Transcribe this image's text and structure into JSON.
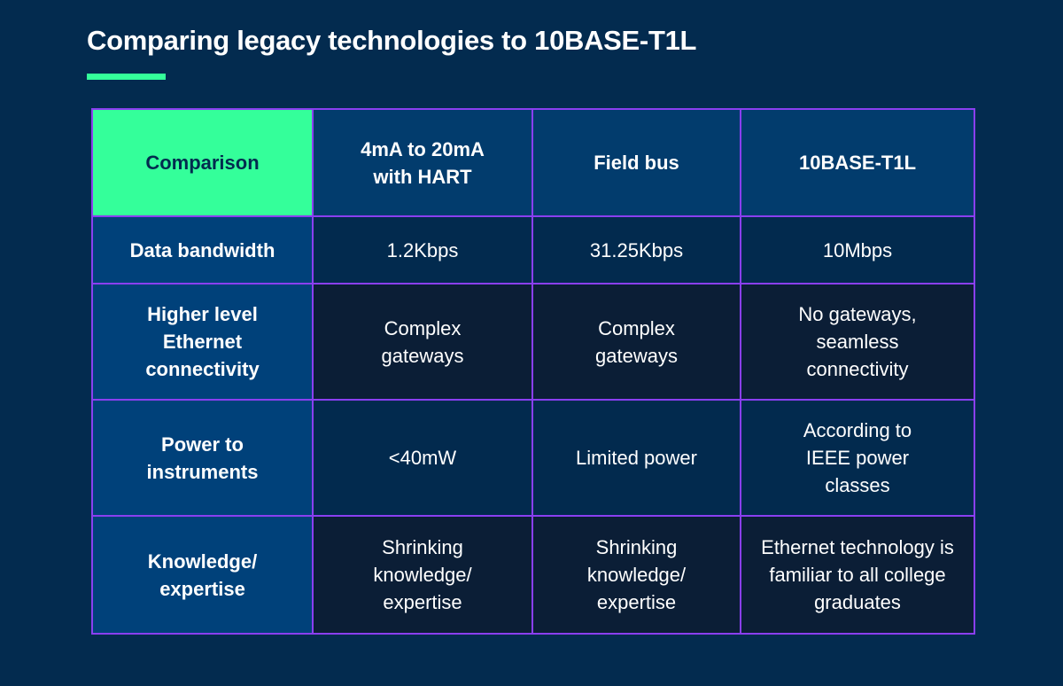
{
  "title": "Comparing legacy technologies to 10BASE-T1L",
  "colors": {
    "accent": "#34ff9a",
    "border": "#8a3ff0",
    "background": "#032b4f"
  },
  "table": {
    "corner": "Comparison",
    "columns": [
      "4mA to 20mA with HART",
      "Field bus",
      "10BASE-T1L"
    ],
    "rows": [
      {
        "label": "Data bandwidth",
        "cells": [
          "1.2Kbps",
          "31.25Kbps",
          "10Mbps"
        ]
      },
      {
        "label": "Higher level Ethernet connectivity",
        "cells": [
          "Complex gateways",
          "Complex gateways",
          "No gateways, seamless connectivity"
        ]
      },
      {
        "label": "Power to instruments",
        "cells": [
          "<40mW",
          "Limited power",
          "According to IEEE power classes"
        ]
      },
      {
        "label": "Knowledge/ expertise",
        "cells": [
          "Shrinking knowledge/ expertise",
          "Shrinking knowledge/ expertise",
          "Ethernet technology is familiar to all college graduates"
        ]
      }
    ]
  }
}
